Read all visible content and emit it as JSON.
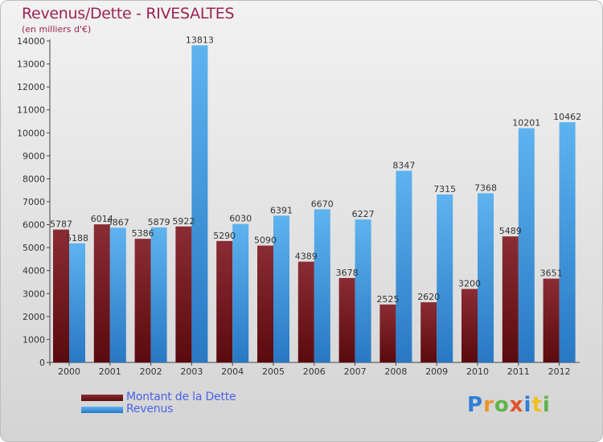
{
  "title": "Revenus/Dette - RIVESALTES",
  "subtitle": "(en milliers d'€)",
  "logo": {
    "text": "Proxiti",
    "letter_colors": [
      "#2f7fd6",
      "#e8962a",
      "#5fb44a",
      "#e0532b",
      "#2f7fd6",
      "#f0c020",
      "#5fb44a"
    ]
  },
  "colors": {
    "debt_top": "#8a2c34",
    "debt_bottom": "#5a0a0e",
    "revenue_top": "#5eb3ef",
    "revenue_bottom": "#2878c4",
    "title": "#9b2452",
    "legend_text": "#4a63e8"
  },
  "chart_data": {
    "type": "bar",
    "categories": [
      "2000",
      "2001",
      "2002",
      "2003",
      "2004",
      "2005",
      "2006",
      "2007",
      "2008",
      "2009",
      "2010",
      "2011",
      "2012"
    ],
    "series": [
      {
        "name": "Montant de la Dette",
        "values": [
          5787,
          6014,
          5386,
          5922,
          5290,
          5090,
          4389,
          3678,
          2525,
          2620,
          3200,
          5489,
          3651
        ],
        "labels": [
          "5787",
          "6014",
          "5386",
          "5922",
          "5290",
          "5090",
          "4389",
          "3678",
          "2525",
          "2620",
          "3200",
          "5489",
          "3651"
        ]
      },
      {
        "name": "Revenus",
        "values": [
          5188,
          5867,
          5879,
          13813,
          6030,
          6391,
          6670,
          6227,
          8347,
          7315,
          7368,
          10201,
          10462
        ],
        "labels": [
          "5188",
          "5867",
          "5879",
          "13813",
          "6030",
          "6391",
          "6670",
          "6227",
          "8347",
          "7315",
          "7368",
          "10201",
          "10462"
        ]
      }
    ],
    "ylim": [
      0,
      14000
    ],
    "yticks": [
      0,
      1000,
      2000,
      3000,
      4000,
      5000,
      6000,
      7000,
      8000,
      9000,
      10000,
      11000,
      12000,
      13000,
      14000
    ],
    "legend_position": "bottom-left",
    "grid": false
  }
}
